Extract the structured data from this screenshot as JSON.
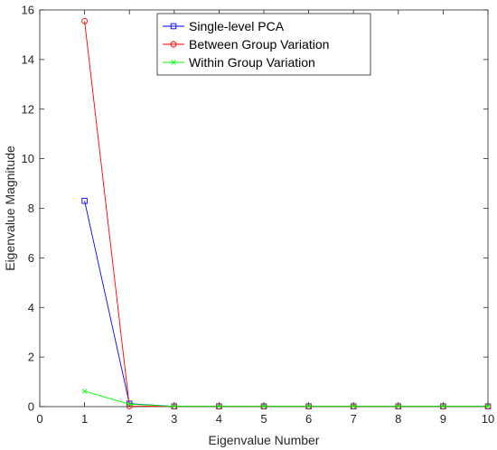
{
  "chart_data": {
    "type": "line",
    "xlabel": "Eigenvalue Number",
    "ylabel": "Eigenvalue Magnitude",
    "xlim": [
      0,
      10
    ],
    "ylim": [
      0,
      16
    ],
    "xticks": [
      0,
      1,
      2,
      3,
      4,
      5,
      6,
      7,
      8,
      9,
      10
    ],
    "yticks": [
      0,
      2,
      4,
      6,
      8,
      10,
      12,
      14,
      16
    ],
    "grid": false,
    "legend_position": "top-center",
    "series": [
      {
        "name": "Single-level PCA",
        "color": "#0000ff",
        "marker": "square",
        "x": [
          1,
          2,
          3,
          4,
          5,
          6,
          7,
          8,
          9,
          10
        ],
        "y": [
          8.3,
          0.12,
          0.01,
          0.01,
          0.01,
          0.01,
          0.01,
          0.01,
          0.01,
          0.01
        ]
      },
      {
        "name": "Between Group Variation",
        "color": "#ff0000",
        "marker": "circle",
        "x": [
          1,
          2,
          3,
          4,
          5,
          6,
          7,
          8,
          9,
          10
        ],
        "y": [
          15.55,
          0.02,
          0.01,
          0.01,
          0.01,
          0.01,
          0.01,
          0.01,
          0.01,
          0.01
        ]
      },
      {
        "name": "Within Group Variation",
        "color": "#00ff00",
        "marker": "x",
        "x": [
          1,
          2,
          3,
          4,
          5,
          6,
          7,
          8,
          9,
          10
        ],
        "y": [
          0.62,
          0.1,
          0.01,
          0.01,
          0.01,
          0.01,
          0.01,
          0.01,
          0.01,
          0.01
        ]
      }
    ]
  }
}
